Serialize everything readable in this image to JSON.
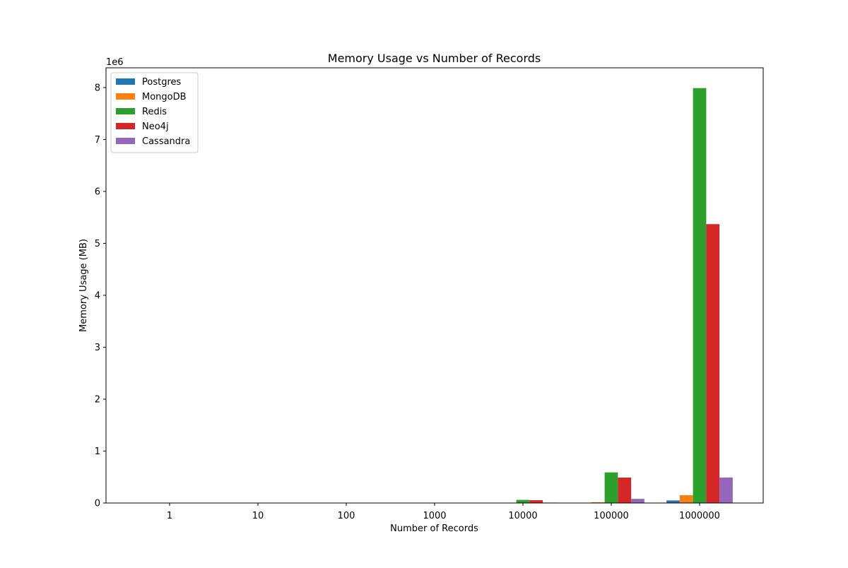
{
  "chart_data": {
    "type": "bar",
    "title": "Memory Usage vs Number of Records",
    "xlabel": "Number of Records",
    "ylabel": "Memory Usage (MB)",
    "y_offset_label": "1e6",
    "y_scale": 1000000,
    "categories": [
      "1",
      "10",
      "100",
      "1000",
      "10000",
      "100000",
      "1000000"
    ],
    "ylim": [
      0,
      8380000
    ],
    "yticks": [
      0,
      1000000,
      2000000,
      3000000,
      4000000,
      5000000,
      6000000,
      7000000,
      8000000
    ],
    "ytick_labels": [
      "0",
      "1",
      "2",
      "3",
      "4",
      "5",
      "6",
      "7",
      "8"
    ],
    "legend_position": "top-left",
    "grid": false,
    "series": [
      {
        "name": "Postgres",
        "color": "#1f77b4",
        "values": [
          0.05,
          0.5,
          5,
          50,
          500,
          5000,
          50000
        ]
      },
      {
        "name": "MongoDB",
        "color": "#ff7f0e",
        "values": [
          0.15,
          1.5,
          15,
          150,
          1500,
          15000,
          150000
        ]
      },
      {
        "name": "Redis",
        "color": "#2ca02c",
        "values": [
          8,
          80,
          800,
          6000,
          60000,
          590000,
          7990000
        ]
      },
      {
        "name": "Neo4j",
        "color": "#d62728",
        "values": [
          5,
          50,
          500,
          5000,
          55000,
          490000,
          5370000
        ]
      },
      {
        "name": "Cassandra",
        "color": "#9467bd",
        "values": [
          0.5,
          5,
          50,
          500,
          8000,
          80000,
          490000
        ]
      }
    ]
  }
}
